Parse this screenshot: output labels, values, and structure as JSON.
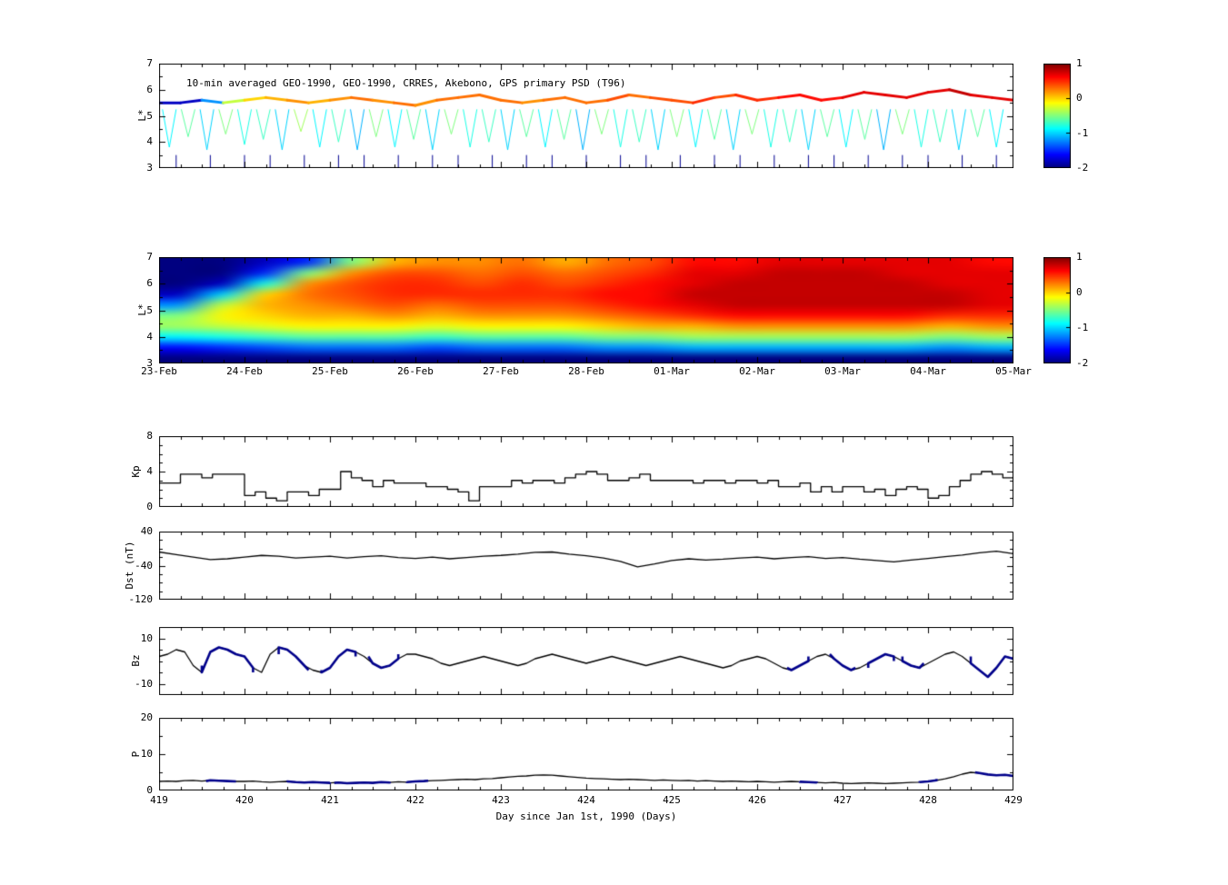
{
  "figure": {
    "background": "#ffffff",
    "axis_color": "#000000",
    "line_color": "#000000",
    "highlight_color": "#00008b"
  },
  "chart_data": [
    {
      "type": "scatter",
      "name": "psd-orbit-tracks",
      "title": "10-min averaged GEO-1990, GEO-1990, CRRES, Akebono, GPS  primary PSD (T96)",
      "ylabel": "L*",
      "xlim": [
        419,
        429
      ],
      "ylim": [
        3,
        7
      ],
      "yticks": [
        7,
        6,
        5,
        4,
        3
      ],
      "colormap": "jet",
      "clim": [
        -2,
        1
      ],
      "colorbar_ticks": [
        1,
        0,
        -1,
        -2
      ],
      "geo_band": {
        "x_start": 419,
        "x_step": 0.25,
        "l": [
          5.5,
          5.5,
          5.6,
          5.5,
          5.6,
          5.7,
          5.6,
          5.5,
          5.6,
          5.7,
          5.6,
          5.5,
          5.4,
          5.6,
          5.7,
          5.8,
          5.6,
          5.5,
          5.6,
          5.7,
          5.5,
          5.6,
          5.8,
          5.7,
          5.6,
          5.5,
          5.7,
          5.8,
          5.6,
          5.7,
          5.8,
          5.6,
          5.7,
          5.9,
          5.8,
          5.7,
          5.9,
          6.0,
          5.8,
          5.7,
          5.6
        ],
        "psd": [
          -1.8,
          -1.8,
          -1.2,
          -0.3,
          0.0,
          0.1,
          0.2,
          0.1,
          0.2,
          0.3,
          0.2,
          0.3,
          0.2,
          0.3,
          0.3,
          0.3,
          0.3,
          0.2,
          0.3,
          0.3,
          0.3,
          0.4,
          0.3,
          0.4,
          0.4,
          0.5,
          0.4,
          0.5,
          0.5,
          0.6,
          0.6,
          0.6,
          0.7,
          0.7,
          0.7,
          0.7,
          0.7,
          0.8,
          0.7,
          0.7,
          0.7
        ]
      },
      "dips": [
        [
          419.12,
          3.8,
          -0.9
        ],
        [
          419.34,
          4.2,
          -0.6
        ],
        [
          419.56,
          3.7,
          -1.0
        ],
        [
          419.78,
          4.3,
          -0.5
        ],
        [
          420.0,
          3.9,
          -0.8
        ],
        [
          420.22,
          4.1,
          -0.7
        ],
        [
          420.44,
          3.7,
          -1.0
        ],
        [
          420.66,
          4.4,
          -0.4
        ],
        [
          420.88,
          3.8,
          -0.9
        ],
        [
          421.1,
          4.0,
          -0.7
        ],
        [
          421.32,
          3.7,
          -1.1
        ],
        [
          421.54,
          4.2,
          -0.5
        ],
        [
          421.76,
          3.8,
          -0.9
        ],
        [
          421.98,
          4.1,
          -0.6
        ],
        [
          422.2,
          3.7,
          -1.0
        ],
        [
          422.42,
          4.3,
          -0.5
        ],
        [
          422.64,
          3.8,
          -0.8
        ],
        [
          422.86,
          4.0,
          -0.7
        ],
        [
          423.08,
          3.7,
          -1.0
        ],
        [
          423.3,
          4.2,
          -0.6
        ],
        [
          423.52,
          3.8,
          -0.9
        ],
        [
          423.74,
          4.1,
          -0.6
        ],
        [
          423.96,
          3.7,
          -1.1
        ],
        [
          424.18,
          4.3,
          -0.5
        ],
        [
          424.4,
          3.8,
          -0.8
        ],
        [
          424.62,
          4.0,
          -0.7
        ],
        [
          424.84,
          3.7,
          -1.0
        ],
        [
          425.06,
          4.2,
          -0.5
        ],
        [
          425.28,
          3.8,
          -0.9
        ],
        [
          425.5,
          4.1,
          -0.6
        ],
        [
          425.72,
          3.7,
          -1.0
        ],
        [
          425.94,
          4.3,
          -0.5
        ],
        [
          426.16,
          3.8,
          -0.8
        ],
        [
          426.38,
          4.0,
          -0.7
        ],
        [
          426.6,
          3.7,
          -1.0
        ],
        [
          426.82,
          4.2,
          -0.6
        ],
        [
          427.04,
          3.8,
          -0.9
        ],
        [
          427.26,
          4.1,
          -0.6
        ],
        [
          427.48,
          3.7,
          -1.1
        ],
        [
          427.7,
          4.3,
          -0.5
        ],
        [
          427.92,
          3.8,
          -0.8
        ],
        [
          428.14,
          4.0,
          -0.7
        ],
        [
          428.36,
          3.7,
          -1.0
        ],
        [
          428.58,
          4.2,
          -0.6
        ],
        [
          428.8,
          3.8,
          -0.9
        ]
      ],
      "bottom_spikes": [
        419.2,
        419.6,
        420.0,
        420.3,
        420.7,
        421.1,
        421.4,
        421.8,
        422.2,
        422.5,
        422.9,
        423.3,
        423.6,
        424.0,
        424.4,
        424.7,
        425.1,
        425.5,
        425.8,
        426.2,
        426.6,
        426.9,
        427.3,
        427.7,
        428.0,
        428.4,
        428.8
      ]
    },
    {
      "type": "heatmap",
      "name": "psd-l-time-map",
      "ylabel": "L*",
      "xlim": [
        419,
        429
      ],
      "ylim": [
        3,
        7
      ],
      "yticks": [
        7,
        6,
        5,
        4,
        3
      ],
      "colormap": "jet",
      "clim": [
        -2,
        1
      ],
      "colorbar_ticks": [
        1,
        0,
        -1,
        -2
      ],
      "xtick_labels": [
        "23-Feb",
        "24-Feb",
        "25-Feb",
        "26-Feb",
        "27-Feb",
        "28-Feb",
        "01-Mar",
        "02-Mar",
        "03-Mar",
        "04-Mar",
        "05-Mar"
      ],
      "grid_rows_top_to_bottom": [
        [
          -2,
          -2,
          -1.8,
          -1.5,
          -0.5,
          0.1,
          0.2,
          0.2,
          0.3,
          0.1,
          0.3,
          0.4,
          0.6,
          0.6,
          0.7,
          0.7,
          0.7,
          0.7,
          0.7,
          0.6
        ],
        [
          -2,
          -2,
          -1.5,
          -0.5,
          0.2,
          0.4,
          0.4,
          0.3,
          0.4,
          0.3,
          0.4,
          0.5,
          0.7,
          0.7,
          0.8,
          0.8,
          0.8,
          0.7,
          0.7,
          0.7
        ],
        [
          -2,
          -1.8,
          -0.8,
          0.2,
          0.4,
          0.5,
          0.5,
          0.4,
          0.5,
          0.4,
          0.5,
          0.6,
          0.7,
          0.8,
          0.8,
          0.8,
          0.8,
          0.8,
          0.7,
          0.7
        ],
        [
          -1.8,
          -1.0,
          0.0,
          0.3,
          0.4,
          0.5,
          0.5,
          0.5,
          0.5,
          0.5,
          0.6,
          0.6,
          0.8,
          0.8,
          0.8,
          0.8,
          0.8,
          0.8,
          0.8,
          0.7
        ],
        [
          -1.2,
          -0.3,
          0.1,
          0.2,
          0.3,
          0.4,
          0.3,
          0.4,
          0.4,
          0.4,
          0.5,
          0.6,
          0.7,
          0.8,
          0.8,
          0.8,
          0.8,
          0.8,
          0.8,
          0.7
        ],
        [
          -0.5,
          -0.1,
          0.0,
          0.1,
          0.1,
          0.2,
          0.1,
          0.2,
          0.2,
          0.2,
          0.3,
          0.4,
          0.5,
          0.6,
          0.6,
          0.6,
          0.6,
          0.6,
          0.5,
          0.5
        ],
        [
          -0.4,
          -0.3,
          -0.2,
          -0.1,
          -0.1,
          -0.1,
          -0.2,
          -0.1,
          -0.1,
          -0.1,
          0.0,
          0.1,
          0.1,
          0.2,
          0.2,
          0.2,
          0.2,
          0.2,
          0.1,
          0.2
        ],
        [
          -0.9,
          -0.8,
          -0.7,
          -0.6,
          -0.6,
          -0.6,
          -0.7,
          -0.6,
          -0.6,
          -0.6,
          -0.5,
          -0.5,
          -0.4,
          -0.4,
          -0.4,
          -0.4,
          -0.4,
          -0.4,
          -0.5,
          -0.4
        ],
        [
          -1.6,
          -1.5,
          -1.4,
          -1.3,
          -1.3,
          -1.3,
          -1.4,
          -1.3,
          -1.3,
          -1.3,
          -1.2,
          -1.2,
          -1.1,
          -1.1,
          -1.1,
          -1.1,
          -1.1,
          -1.1,
          -1.2,
          -1.1
        ],
        [
          -2,
          -2,
          -2,
          -2,
          -2,
          -2,
          -2,
          -2,
          -2,
          -2,
          -2,
          -2,
          -2,
          -2,
          -2,
          -2,
          -2,
          -2,
          -2,
          -2
        ]
      ]
    },
    {
      "type": "line",
      "name": "kp-index",
      "ylabel": "Kp",
      "xlim": [
        419,
        429
      ],
      "ylim": [
        0,
        8
      ],
      "yticks": [
        8,
        4,
        0
      ],
      "step": true,
      "x_start": 419,
      "x_step": 0.125,
      "values": [
        2.7,
        2.7,
        3.7,
        3.7,
        3.3,
        3.7,
        3.7,
        3.7,
        1.3,
        1.7,
        1.0,
        0.7,
        1.7,
        1.7,
        1.3,
        2.0,
        2.0,
        4.0,
        3.3,
        3.0,
        2.3,
        3.0,
        2.7,
        2.7,
        2.7,
        2.3,
        2.3,
        2.0,
        1.7,
        0.7,
        2.3,
        2.3,
        2.3,
        3.0,
        2.7,
        3.0,
        3.0,
        2.7,
        3.3,
        3.7,
        4.0,
        3.7,
        3.0,
        3.0,
        3.3,
        3.7,
        3.0,
        3.0,
        3.0,
        3.0,
        2.7,
        3.0,
        3.0,
        2.7,
        3.0,
        3.0,
        2.7,
        3.0,
        2.3,
        2.3,
        2.7,
        1.7,
        2.3,
        1.7,
        2.3,
        2.3,
        1.7,
        2.0,
        1.3,
        2.0,
        2.3,
        2.0,
        1.0,
        1.3,
        2.3,
        3.0,
        3.7,
        4.0,
        3.7,
        3.3
      ]
    },
    {
      "type": "line",
      "name": "dst-index",
      "ylabel": "Dst (nT)",
      "xlim": [
        419,
        429
      ],
      "ylim": [
        -120,
        40
      ],
      "yticks": [
        40,
        -40,
        -120
      ],
      "x_start": 419,
      "x_step": 0.2,
      "values": [
        -8,
        -14,
        -20,
        -26,
        -24,
        -20,
        -16,
        -18,
        -22,
        -20,
        -18,
        -22,
        -19,
        -17,
        -21,
        -23,
        -20,
        -24,
        -21,
        -18,
        -16,
        -13,
        -9,
        -8,
        -13,
        -17,
        -22,
        -30,
        -43,
        -36,
        -28,
        -24,
        -27,
        -25,
        -22,
        -20,
        -24,
        -21,
        -19,
        -23,
        -21,
        -25,
        -28,
        -31,
        -27,
        -23,
        -19,
        -15,
        -10,
        -6,
        -12
      ]
    },
    {
      "type": "line",
      "name": "imf-bz",
      "ylabel": "Bz",
      "xlim": [
        419,
        429
      ],
      "ylim": [
        -15,
        15
      ],
      "yticks": [
        10,
        -10
      ],
      "x_start": 419,
      "x_step": 0.1,
      "values": [
        2,
        3,
        5,
        4,
        -2,
        -5,
        4,
        6,
        5,
        3,
        2,
        -3,
        -5,
        3,
        6,
        5,
        2,
        -2,
        -4,
        -5,
        -3,
        2,
        5,
        4,
        2,
        -1,
        -3,
        -2,
        1,
        3,
        3,
        2,
        1,
        -1,
        -2,
        -1,
        0,
        1,
        2,
        1,
        0,
        -1,
        -2,
        -1,
        1,
        2,
        3,
        2,
        1,
        0,
        -1,
        0,
        1,
        2,
        1,
        0,
        -1,
        -2,
        -1,
        0,
        1,
        2,
        1,
        0,
        -1,
        -2,
        -3,
        -2,
        0,
        1,
        2,
        1,
        -1,
        -3,
        -4,
        -2,
        0,
        2,
        3,
        1,
        -2,
        -4,
        -3,
        -1,
        1,
        3,
        2,
        0,
        -2,
        -3,
        -1,
        1,
        3,
        4,
        2,
        -1,
        -4,
        -7,
        -3,
        2,
        1
      ],
      "highlight_ranges": [
        [
          419.5,
          420.1
        ],
        [
          420.4,
          420.75
        ],
        [
          420.9,
          421.3
        ],
        [
          421.45,
          421.8
        ],
        [
          426.35,
          426.6
        ],
        [
          426.85,
          427.15
        ],
        [
          427.3,
          427.6
        ],
        [
          427.7,
          427.95
        ],
        [
          428.5,
          429.0
        ]
      ],
      "highlight_color": "#00008b"
    },
    {
      "type": "line",
      "name": "solar-wind-pressure",
      "ylabel": "P",
      "xlim": [
        419,
        429
      ],
      "ylim": [
        0,
        20
      ],
      "yticks": [
        20,
        10,
        0
      ],
      "x_start": 419,
      "x_step": 0.1,
      "values": [
        2.5,
        2.6,
        2.5,
        2.7,
        2.8,
        2.6,
        2.8,
        2.7,
        2.6,
        2.5,
        2.5,
        2.6,
        2.4,
        2.3,
        2.4,
        2.5,
        2.3,
        2.2,
        2.3,
        2.2,
        2.1,
        2.2,
        2.0,
        2.1,
        2.2,
        2.1,
        2.3,
        2.2,
        2.4,
        2.3,
        2.5,
        2.6,
        2.7,
        2.8,
        2.9,
        3.0,
        3.1,
        3.0,
        3.2,
        3.3,
        3.5,
        3.7,
        3.9,
        4.0,
        4.2,
        4.3,
        4.2,
        4.0,
        3.8,
        3.6,
        3.4,
        3.3,
        3.2,
        3.1,
        3.0,
        3.1,
        3.0,
        2.9,
        2.8,
        2.9,
        2.8,
        2.7,
        2.8,
        2.6,
        2.7,
        2.6,
        2.5,
        2.6,
        2.5,
        2.4,
        2.5,
        2.4,
        2.3,
        2.4,
        2.5,
        2.4,
        2.3,
        2.2,
        2.1,
        2.2,
        2.0,
        1.9,
        2.0,
        2.1,
        2.0,
        1.9,
        2.0,
        2.1,
        2.2,
        2.3,
        2.5,
        2.8,
        3.2,
        3.8,
        4.5,
        5.0,
        4.8,
        4.4,
        4.2,
        4.3,
        4.0
      ],
      "highlight_ranges": [
        [
          419.55,
          419.9
        ],
        [
          420.5,
          421.0
        ],
        [
          421.05,
          421.7
        ],
        [
          421.9,
          422.15
        ],
        [
          426.5,
          426.7
        ],
        [
          427.9,
          428.1
        ],
        [
          428.55,
          429.0
        ]
      ],
      "highlight_color": "#00008b",
      "xticks": [
        419,
        420,
        421,
        422,
        423,
        424,
        425,
        426,
        427,
        428,
        429
      ],
      "xlabel": "Day since Jan 1st, 1990 (Days)"
    }
  ]
}
